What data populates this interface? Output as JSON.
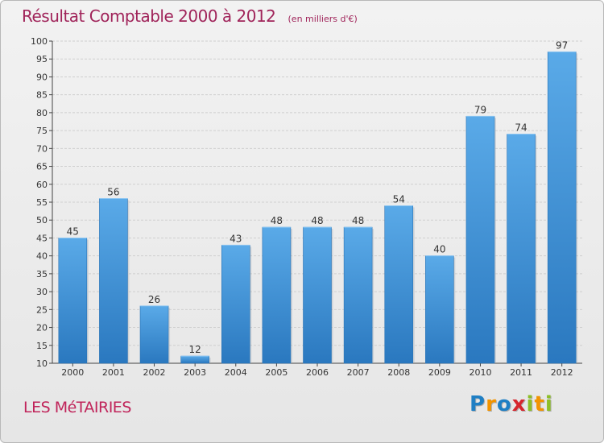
{
  "chart_data": {
    "type": "bar",
    "title": "Résultat Comptable 2000 à 2012",
    "subtitle": "(en milliers d'€)",
    "categories": [
      "2000",
      "2001",
      "2002",
      "2003",
      "2004",
      "2005",
      "2006",
      "2007",
      "2008",
      "2009",
      "2010",
      "2011",
      "2012"
    ],
    "values": [
      45,
      56,
      26,
      12,
      43,
      48,
      48,
      48,
      54,
      40,
      79,
      74,
      97
    ],
    "ylim": [
      10,
      100
    ],
    "yticks": [
      10,
      15,
      20,
      25,
      30,
      35,
      40,
      45,
      50,
      55,
      60,
      65,
      70,
      75,
      80,
      85,
      90,
      95,
      100
    ],
    "xlabel": "",
    "ylabel": "",
    "grid": true,
    "bar_color": "#3d8fd6"
  },
  "commune": "LES MéTAIRIES",
  "logo": {
    "letters": [
      "P",
      "r",
      "o",
      "x",
      "i",
      "t",
      "i"
    ],
    "colors": [
      "#1f7fc4",
      "#f29400",
      "#1f7fc4",
      "#d6262e",
      "#8dbf27",
      "#f29400",
      "#8dbf27"
    ]
  }
}
